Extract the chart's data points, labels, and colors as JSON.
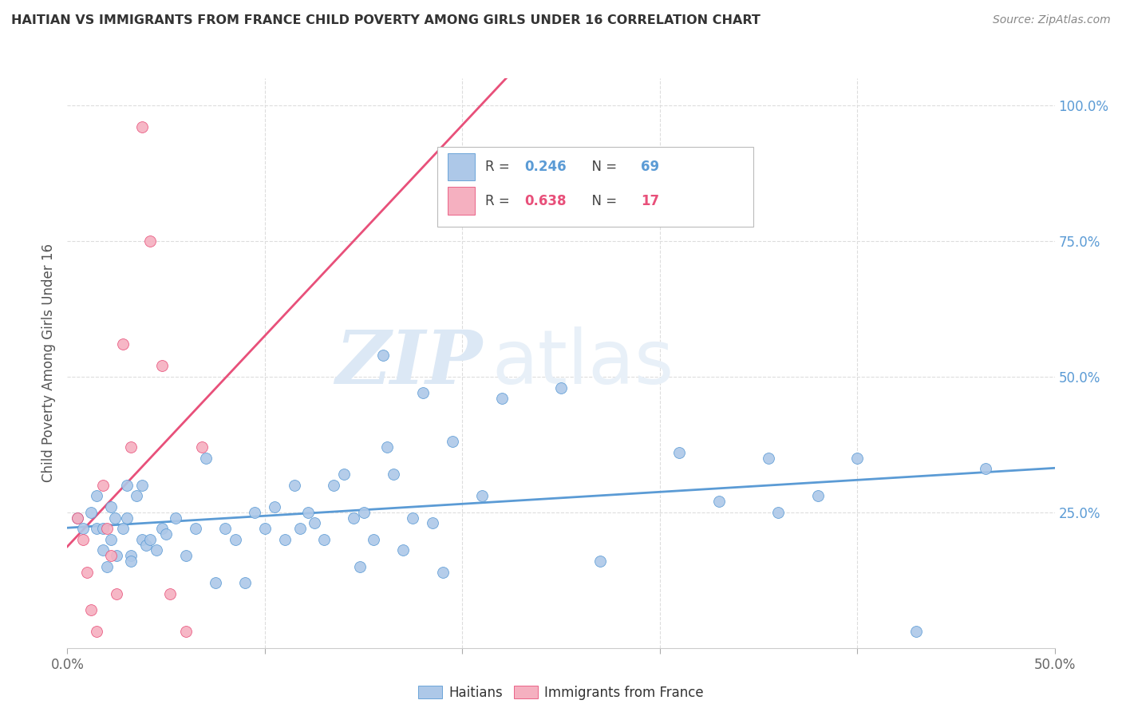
{
  "title": "HAITIAN VS IMMIGRANTS FROM FRANCE CHILD POVERTY AMONG GIRLS UNDER 16 CORRELATION CHART",
  "source": "Source: ZipAtlas.com",
  "ylabel": "Child Poverty Among Girls Under 16",
  "legend_labels": [
    "Haitians",
    "Immigrants from France"
  ],
  "r_haitian": 0.246,
  "n_haitian": 69,
  "r_france": 0.638,
  "n_france": 17,
  "color_haitian": "#adc8e8",
  "color_france": "#f5b0c0",
  "line_color_haitian": "#5b9bd5",
  "line_color_france": "#e8507a",
  "watermark_zip": "ZIP",
  "watermark_atlas": "atlas",
  "xlim": [
    0.0,
    0.5
  ],
  "ylim": [
    0.0,
    1.05
  ],
  "y_ticks_right": [
    0.0,
    0.25,
    0.5,
    0.75,
    1.0
  ],
  "y_tick_labels_right": [
    "",
    "25.0%",
    "50.0%",
    "75.0%",
    "100.0%"
  ],
  "haitian_x": [
    0.005,
    0.008,
    0.012,
    0.015,
    0.015,
    0.018,
    0.018,
    0.02,
    0.022,
    0.022,
    0.024,
    0.025,
    0.028,
    0.03,
    0.03,
    0.032,
    0.032,
    0.035,
    0.038,
    0.038,
    0.04,
    0.042,
    0.045,
    0.048,
    0.05,
    0.055,
    0.06,
    0.065,
    0.07,
    0.075,
    0.08,
    0.085,
    0.09,
    0.095,
    0.1,
    0.105,
    0.11,
    0.115,
    0.118,
    0.122,
    0.125,
    0.13,
    0.135,
    0.14,
    0.145,
    0.148,
    0.15,
    0.155,
    0.16,
    0.162,
    0.165,
    0.17,
    0.175,
    0.18,
    0.185,
    0.19,
    0.195,
    0.21,
    0.22,
    0.25,
    0.27,
    0.31,
    0.33,
    0.355,
    0.36,
    0.38,
    0.4,
    0.43,
    0.465
  ],
  "haitian_y": [
    0.24,
    0.22,
    0.25,
    0.22,
    0.28,
    0.22,
    0.18,
    0.15,
    0.2,
    0.26,
    0.24,
    0.17,
    0.22,
    0.3,
    0.24,
    0.17,
    0.16,
    0.28,
    0.2,
    0.3,
    0.19,
    0.2,
    0.18,
    0.22,
    0.21,
    0.24,
    0.17,
    0.22,
    0.35,
    0.12,
    0.22,
    0.2,
    0.12,
    0.25,
    0.22,
    0.26,
    0.2,
    0.3,
    0.22,
    0.25,
    0.23,
    0.2,
    0.3,
    0.32,
    0.24,
    0.15,
    0.25,
    0.2,
    0.54,
    0.37,
    0.32,
    0.18,
    0.24,
    0.47,
    0.23,
    0.14,
    0.38,
    0.28,
    0.46,
    0.48,
    0.16,
    0.36,
    0.27,
    0.35,
    0.25,
    0.28,
    0.35,
    0.03,
    0.33
  ],
  "france_x": [
    0.005,
    0.008,
    0.01,
    0.012,
    0.015,
    0.018,
    0.02,
    0.022,
    0.025,
    0.028,
    0.032,
    0.038,
    0.042,
    0.048,
    0.052,
    0.06,
    0.068
  ],
  "france_y": [
    0.24,
    0.2,
    0.14,
    0.07,
    0.03,
    0.3,
    0.22,
    0.17,
    0.1,
    0.56,
    0.37,
    0.96,
    0.75,
    0.52,
    0.1,
    0.03,
    0.37
  ]
}
